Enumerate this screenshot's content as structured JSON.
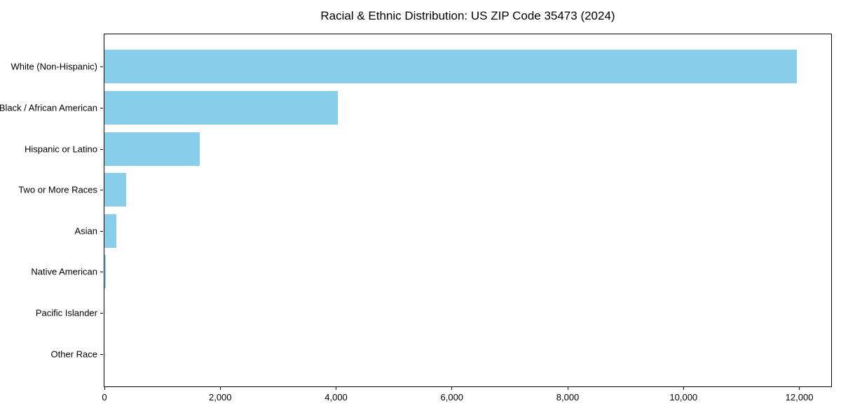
{
  "page": {
    "background": "#ffffff"
  },
  "chart_data": {
    "type": "bar",
    "orientation": "horizontal",
    "title": "Racial & Ethnic Distribution: US ZIP Code 35473 (2024)",
    "categories": [
      "White (Non-Hispanic)",
      "Black / African American",
      "Hispanic or Latino",
      "Two or More Races",
      "Asian",
      "Native American",
      "Pacific Islander",
      "Other Race"
    ],
    "values": [
      11960,
      4030,
      1650,
      370,
      205,
      25,
      0,
      0
    ],
    "xticks": [
      0,
      2000,
      4000,
      6000,
      8000,
      10000,
      12000
    ],
    "xtick_labels": [
      "0",
      "2,000",
      "4,000",
      "6,000",
      "8,000",
      "10,000",
      "12,000"
    ],
    "xlim": [
      0,
      12550
    ],
    "xlabel": "",
    "ylabel": "",
    "bar_color": "#87CEEB",
    "axis_color": "#000000",
    "background_color": "#ffffff",
    "grid": false,
    "legend": "none"
  }
}
